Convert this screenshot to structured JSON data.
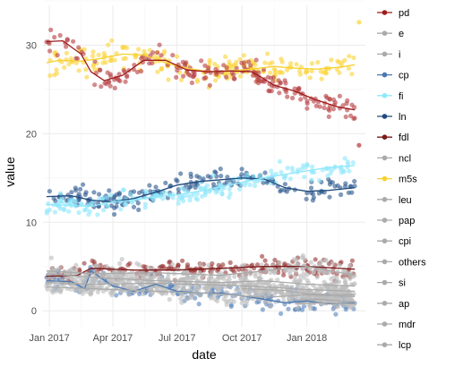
{
  "chart_data": {
    "type": "scatter",
    "title": "",
    "xlabel": "date",
    "ylabel": "value",
    "x_range": [
      "2016-12-23",
      "2018-03-25"
    ],
    "ylim": [
      -1.8,
      34.5
    ],
    "x_ticks": [
      {
        "date": "2017-01-01",
        "label": "Jan 2017"
      },
      {
        "date": "2017-04-01",
        "label": "Apr 2017"
      },
      {
        "date": "2017-07-01",
        "label": "Jul 2017"
      },
      {
        "date": "2017-10-01",
        "label": "Oct 2017"
      },
      {
        "date": "2018-01-01",
        "label": "Jan 2018"
      }
    ],
    "y_ticks": [
      0,
      10,
      20,
      30
    ],
    "grid": true,
    "legend_position": "right",
    "legend": [
      {
        "name": "pd",
        "color": "#9e1b1b"
      },
      {
        "name": "e",
        "color": "#aaaaaa"
      },
      {
        "name": "i",
        "color": "#aaaaaa"
      },
      {
        "name": "cp",
        "color": "#4a78b0"
      },
      {
        "name": "fi",
        "color": "#8ee8fb"
      },
      {
        "name": "ln",
        "color": "#1e4a7c"
      },
      {
        "name": "fdl",
        "color": "#7a1a1a"
      },
      {
        "name": "ncl",
        "color": "#aaaaaa"
      },
      {
        "name": "m5s",
        "color": "#f7d132"
      },
      {
        "name": "leu",
        "color": "#aaaaaa"
      },
      {
        "name": "pap",
        "color": "#aaaaaa"
      },
      {
        "name": "cpi",
        "color": "#aaaaaa"
      },
      {
        "name": "others",
        "color": "#aaaaaa"
      },
      {
        "name": "si",
        "color": "#aaaaaa"
      },
      {
        "name": "ap",
        "color": "#aaaaaa"
      },
      {
        "name": "mdr",
        "color": "#aaaaaa"
      },
      {
        "name": "lcp",
        "color": "#aaaaaa"
      }
    ],
    "series": [
      {
        "name": "m5s",
        "color": "#f7d132",
        "point_color": "#fcd43a",
        "spread": 1.3,
        "trend": [
          [
            "2016-12-28",
            28.0
          ],
          [
            "2017-01-15",
            28.3
          ],
          [
            "2017-02-15",
            28.2
          ],
          [
            "2017-03-15",
            28.5
          ],
          [
            "2017-04-15",
            29.0
          ],
          [
            "2017-05-15",
            28.9
          ],
          [
            "2017-06-15",
            28.0
          ],
          [
            "2017-07-15",
            27.4
          ],
          [
            "2017-08-15",
            27.0
          ],
          [
            "2017-09-15",
            27.1
          ],
          [
            "2017-10-15",
            27.3
          ],
          [
            "2017-11-15",
            27.6
          ],
          [
            "2017-12-15",
            27.4
          ],
          [
            "2018-01-15",
            27.3
          ],
          [
            "2018-02-15",
            27.5
          ],
          [
            "2018-03-10",
            27.8
          ]
        ]
      },
      {
        "name": "pd",
        "color": "#9e1b1b",
        "point_color": "#b84246",
        "spread": 1.2,
        "trend": [
          [
            "2016-12-28",
            30.4
          ],
          [
            "2017-01-20",
            30.5
          ],
          [
            "2017-02-15",
            29.0
          ],
          [
            "2017-03-01",
            27.0
          ],
          [
            "2017-03-20",
            26.0
          ],
          [
            "2017-04-15",
            26.6
          ],
          [
            "2017-05-15",
            28.3
          ],
          [
            "2017-06-15",
            28.3
          ],
          [
            "2017-07-15",
            27.2
          ],
          [
            "2017-08-15",
            27.0
          ],
          [
            "2017-09-15",
            27.1
          ],
          [
            "2017-10-15",
            27.0
          ],
          [
            "2017-11-01",
            26.2
          ],
          [
            "2017-11-15",
            25.5
          ],
          [
            "2017-12-15",
            24.8
          ],
          [
            "2018-01-15",
            23.8
          ],
          [
            "2018-02-15",
            23.0
          ],
          [
            "2018-03-10",
            22.7
          ]
        ]
      },
      {
        "name": "ln",
        "color": "#1e4a7c",
        "point_color": "#2f5a8f",
        "spread": 1.1,
        "trend": [
          [
            "2016-12-28",
            12.9
          ],
          [
            "2017-02-01",
            13.0
          ],
          [
            "2017-03-01",
            12.5
          ],
          [
            "2017-04-01",
            12.3
          ],
          [
            "2017-05-01",
            12.7
          ],
          [
            "2017-06-01",
            13.4
          ],
          [
            "2017-07-01",
            14.2
          ],
          [
            "2017-08-01",
            14.6
          ],
          [
            "2017-09-01",
            14.8
          ],
          [
            "2017-10-01",
            15.0
          ],
          [
            "2017-11-01",
            14.9
          ],
          [
            "2017-12-01",
            13.9
          ],
          [
            "2018-01-01",
            13.5
          ],
          [
            "2018-02-01",
            13.6
          ],
          [
            "2018-03-10",
            13.9
          ]
        ]
      },
      {
        "name": "fi",
        "color": "#8ee8fb",
        "point_color": "#8fe6fb",
        "spread": 1.0,
        "trend": [
          [
            "2016-12-28",
            12.0
          ],
          [
            "2017-02-01",
            11.9
          ],
          [
            "2017-03-01",
            11.8
          ],
          [
            "2017-04-01",
            12.3
          ],
          [
            "2017-05-01",
            12.5
          ],
          [
            "2017-06-01",
            12.9
          ],
          [
            "2017-07-01",
            13.1
          ],
          [
            "2017-08-01",
            13.5
          ],
          [
            "2017-09-01",
            14.0
          ],
          [
            "2017-10-01",
            14.5
          ],
          [
            "2017-11-01",
            15.0
          ],
          [
            "2017-12-01",
            15.4
          ],
          [
            "2018-01-01",
            15.8
          ],
          [
            "2018-02-01",
            16.2
          ],
          [
            "2018-03-10",
            16.4
          ]
        ]
      },
      {
        "name": "fdl",
        "color": "#7a1a1a",
        "point_color": "#9a3a3a",
        "spread": 0.9,
        "trend": [
          [
            "2016-12-28",
            3.9
          ],
          [
            "2017-02-10",
            4.0
          ],
          [
            "2017-03-01",
            4.8
          ],
          [
            "2017-05-01",
            4.6
          ],
          [
            "2017-07-01",
            4.6
          ],
          [
            "2017-09-01",
            4.8
          ],
          [
            "2017-11-01",
            5.0
          ],
          [
            "2018-01-01",
            5.0
          ],
          [
            "2018-03-10",
            4.7
          ]
        ]
      },
      {
        "name": "cp",
        "color": "#4a78b0",
        "point_color": "#5b86bd",
        "spread": 1.0,
        "trend": [
          [
            "2016-12-28",
            3.4
          ],
          [
            "2017-02-01",
            3.3
          ],
          [
            "2017-02-20",
            2.5
          ],
          [
            "2017-03-01",
            4.5
          ],
          [
            "2017-04-01",
            2.8
          ],
          [
            "2017-05-01",
            2.2
          ],
          [
            "2017-06-01",
            3.0
          ],
          [
            "2017-07-01",
            2.2
          ],
          [
            "2017-08-01",
            2.0
          ],
          [
            "2017-09-01",
            2.0
          ],
          [
            "2017-10-01",
            1.7
          ],
          [
            "2017-11-01",
            1.3
          ],
          [
            "2017-12-01",
            0.9
          ],
          [
            "2018-01-01",
            1.1
          ],
          [
            "2018-02-01",
            0.8
          ],
          [
            "2018-03-10",
            0.9
          ]
        ]
      },
      {
        "name": "others",
        "color": "#aaaaaa",
        "point_color": "#bdbdbd",
        "spread": 1.1,
        "trend": [
          [
            "2016-12-28",
            4.5
          ],
          [
            "2017-03-01",
            4.2
          ],
          [
            "2017-06-01",
            4.3
          ],
          [
            "2017-09-01",
            4.0
          ],
          [
            "2017-11-01",
            4.5
          ],
          [
            "2018-01-01",
            5.0
          ],
          [
            "2018-03-10",
            4.0
          ]
        ]
      },
      {
        "name": "e",
        "color": "#aaaaaa",
        "point_color": "#bdbdbd",
        "spread": 1.0,
        "trend": [
          [
            "2016-12-28",
            3.2
          ],
          [
            "2017-03-01",
            3.0
          ],
          [
            "2017-06-01",
            3.1
          ],
          [
            "2017-09-01",
            2.9
          ],
          [
            "2017-11-01",
            2.7
          ],
          [
            "2018-01-01",
            2.4
          ],
          [
            "2018-03-10",
            2.2
          ]
        ]
      },
      {
        "name": "si",
        "color": "#aaaaaa",
        "point_color": "#bdbdbd",
        "spread": 0.9,
        "trend": [
          [
            "2016-12-28",
            2.7
          ],
          [
            "2017-03-01",
            2.5
          ],
          [
            "2017-06-01",
            2.2
          ],
          [
            "2017-09-01",
            1.9
          ],
          [
            "2017-11-01",
            1.5
          ],
          [
            "2018-01-01",
            1.8
          ],
          [
            "2018-03-10",
            1.6
          ]
        ]
      },
      {
        "name": "ap",
        "color": "#aaaaaa",
        "point_color": "#bdbdbd",
        "spread": 0.9,
        "trend": [
          [
            "2016-12-28",
            4.2
          ],
          [
            "2017-03-01",
            3.8
          ],
          [
            "2017-06-01",
            3.4
          ],
          [
            "2017-09-01",
            3.2
          ],
          [
            "2017-11-01",
            3.4
          ],
          [
            "2018-01-01",
            3.0
          ],
          [
            "2018-03-10",
            2.8
          ]
        ]
      },
      {
        "name": "leu",
        "color": "#aaaaaa",
        "point_color": "#bdbdbd",
        "spread": 0.8,
        "trend": [
          [
            "2017-10-01",
            2.5
          ],
          [
            "2017-12-01",
            2.3
          ],
          [
            "2018-01-01",
            1.9
          ],
          [
            "2018-03-10",
            1.8
          ]
        ]
      },
      {
        "name": "ncl",
        "color": "#aaaaaa",
        "point_color": "#bdbdbd",
        "spread": 0.6,
        "trend": [
          [
            "2017-12-15",
            1.2
          ],
          [
            "2018-01-15",
            1.3
          ],
          [
            "2018-03-10",
            1.0
          ]
        ]
      },
      {
        "name": "i",
        "color": "#aaaaaa",
        "point_color": "#bdbdbd",
        "spread": 0.6,
        "trend": [
          [
            "2017-12-15",
            0.8
          ],
          [
            "2018-01-15",
            0.9
          ],
          [
            "2018-03-10",
            0.8
          ]
        ]
      }
    ],
    "outliers": [
      {
        "x": "2018-03-16",
        "y": 32.6,
        "color": "#fcd43a"
      },
      {
        "x": "2018-03-16",
        "y": 18.7,
        "color": "#b84246"
      }
    ]
  }
}
